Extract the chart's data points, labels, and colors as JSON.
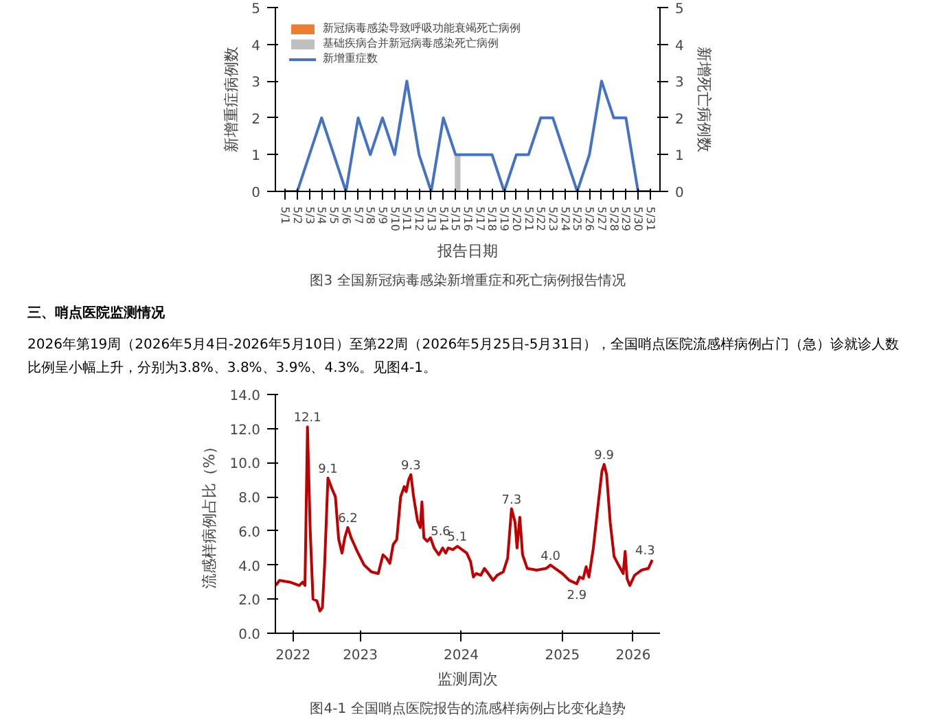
{
  "chart_data": [
    {
      "type": "line",
      "title": "图3 全国新冠病毒感染新增重症和死亡病例报告情况",
      "xlabel": "报告日期",
      "ylabel": "新增重症病例数",
      "y2label": "新增死亡病例数",
      "categories": [
        "5/1",
        "5/2",
        "5/3",
        "5/4",
        "5/5",
        "5/6",
        "5/7",
        "5/8",
        "5/9",
        "5/10",
        "5/11",
        "5/12",
        "5/13",
        "5/14",
        "5/15",
        "5/16",
        "5/17",
        "5/18",
        "5/19",
        "5/20",
        "5/21",
        "5/22",
        "5/23",
        "5/24",
        "5/25",
        "5/26",
        "5/27",
        "5/28",
        "5/29",
        "5/30",
        "5/31"
      ],
      "series": [
        {
          "name": "新冠病毒感染导致呼吸功能衰竭死亡病例",
          "type": "bar",
          "color": "#ed7d31",
          "values": [
            0,
            0,
            0,
            0,
            0,
            0,
            0,
            0,
            0,
            0,
            0,
            0,
            0,
            0,
            0,
            0,
            0,
            0,
            0,
            0,
            0,
            0,
            0,
            0,
            0,
            0,
            0,
            0,
            0,
            0,
            0
          ]
        },
        {
          "name": "基础疾病合并新冠病毒感染死亡病例",
          "type": "bar",
          "color": "#bfbfbf",
          "values": [
            0,
            0,
            0,
            0,
            0,
            0,
            0,
            0,
            0,
            0,
            0,
            0,
            0,
            0,
            1,
            0,
            0,
            0,
            0,
            0,
            0,
            0,
            0,
            0,
            0,
            0,
            0,
            0,
            0,
            0,
            0
          ]
        },
        {
          "name": "新增重症数",
          "type": "line",
          "color": "#4472c4",
          "values": [
            0,
            0,
            1,
            2,
            1,
            0,
            2,
            1,
            2,
            1,
            3,
            1,
            0,
            2,
            1,
            1,
            1,
            1,
            0,
            1,
            1,
            2,
            2,
            1,
            0,
            1,
            3,
            2,
            2,
            0,
            0
          ]
        }
      ],
      "ylim": [
        0,
        5
      ],
      "yticks": [
        0,
        1,
        2,
        3,
        4,
        5
      ],
      "y2lim": [
        0,
        5
      ],
      "y2ticks": [
        0,
        1,
        2,
        3,
        4,
        5
      ],
      "grid": false,
      "legend": "top left",
      "line_style": "solid"
    },
    {
      "type": "other",
      "title": "三、哨点医院监测情况",
      "annotations": [
        "2026年第19周（2026年5月4日-2026年5月10日）至第22周（2026年5月25日-5月31日），全国哨点医院流感样病例占门（急）诊就诊人数比例呈小幅上升，分别为3.8%、3.8%、3.9%、4.3%。见图4-1。"
      ]
    },
    {
      "type": "line",
      "title": "图4-1 全国哨点医院报告的流感样病例占比变化趋势",
      "xlabel": "监测周次",
      "ylabel": "流感样病例占比（%）",
      "x": [
        "2022-08-30",
        "2022-09-13",
        "2022-10-20",
        "2022-11-23",
        "2022-12-06",
        "2022-12-14",
        "2022-12-23",
        "2023-01-02",
        "2023-01-12",
        "2023-01-26",
        "2023-02-06",
        "2023-02-15",
        "2023-02-23",
        "2023-03-07",
        "2023-03-21",
        "2023-04-03",
        "2023-04-15",
        "2023-04-27",
        "2023-05-07",
        "2023-05-18",
        "2023-05-30",
        "2023-06-21",
        "2023-07-16",
        "2023-08-11",
        "2023-09-05",
        "2023-09-22",
        "2023-10-05",
        "2023-10-17",
        "2023-10-29",
        "2023-11-11",
        "2023-11-25",
        "2023-12-08",
        "2023-12-15",
        "2023-12-24",
        "2024-01-01",
        "2024-01-11",
        "2024-01-25",
        "2024-02-04",
        "2024-02-10",
        "2024-02-17",
        "2024-02-29",
        "2024-03-12",
        "2024-03-25",
        "2024-04-11",
        "2024-04-25",
        "2024-05-06",
        "2024-05-15",
        "2024-06-01",
        "2024-06-17",
        "2024-07-04",
        "2024-07-21",
        "2024-08-04",
        "2024-08-14",
        "2024-08-24",
        "2024-09-10",
        "2024-09-23",
        "2024-10-07",
        "2024-10-24",
        "2024-11-08",
        "2024-11-30",
        "2024-12-16",
        "2024-12-30",
        "2025-01-12",
        "2025-01-19",
        "2025-01-29",
        "2025-02-08",
        "2025-02-25",
        "2025-03-31",
        "2025-05-04",
        "2025-05-20",
        "2025-06-06",
        "2025-07-02",
        "2025-07-27",
        "2025-08-23",
        "2025-09-02",
        "2025-09-15",
        "2025-09-26",
        "2025-10-06",
        "2025-10-22",
        "2025-11-08",
        "2025-11-22",
        "2025-11-30",
        "2025-12-09",
        "2025-12-22",
        "2026-01-05",
        "2026-01-21",
        "2026-02-07",
        "2026-02-14",
        "2026-02-21",
        "2026-03-03",
        "2026-03-20",
        "2026-04-14",
        "2026-05-09",
        "2026-05-23"
      ],
      "series": [
        {
          "color": "#c00000",
          "values": [
            2.8,
            3.1,
            3.0,
            2.8,
            3.0,
            2.8,
            12.1,
            6.0,
            2.0,
            1.9,
            1.3,
            1.5,
            4.0,
            9.1,
            8.5,
            8.0,
            5.5,
            4.7,
            5.6,
            6.2,
            5.6,
            4.8,
            4.0,
            3.6,
            3.5,
            4.6,
            4.4,
            4.1,
            5.2,
            5.5,
            8.0,
            8.6,
            8.3,
            9.0,
            9.3,
            8.0,
            6.6,
            6.2,
            7.7,
            5.6,
            5.4,
            5.6,
            5.0,
            4.6,
            5.0,
            4.7,
            5.0,
            4.9,
            5.1,
            4.9,
            4.7,
            4.2,
            3.3,
            3.5,
            3.4,
            3.8,
            3.5,
            3.1,
            3.4,
            3.6,
            4.4,
            7.3,
            6.5,
            5.0,
            6.8,
            4.6,
            3.8,
            3.7,
            3.8,
            4.0,
            3.8,
            3.5,
            3.1,
            2.9,
            3.3,
            3.2,
            3.9,
            3.3,
            5.0,
            7.5,
            9.5,
            9.9,
            9.3,
            6.5,
            4.5,
            4.0,
            3.5,
            4.8,
            3.2,
            2.8,
            3.4,
            3.7,
            3.8,
            4.3
          ]
        }
      ],
      "xlim": [
        "2022-08-29",
        "2026-06-20"
      ],
      "xticks": [
        {
          "value": "2022-11-01",
          "label": "2022"
        },
        {
          "value": "2023-07-02",
          "label": "2023"
        },
        {
          "value": "2024-07-01",
          "label": "2024"
        },
        {
          "value": "2025-07-02",
          "label": "2025"
        },
        {
          "value": "2026-03-15",
          "label": "2026"
        }
      ],
      "ylim": [
        0,
        14
      ],
      "yticks": [
        {
          "value": 0,
          "label": "0.0"
        },
        {
          "value": 2,
          "label": "2.0"
        },
        {
          "value": 4,
          "label": "4.0"
        },
        {
          "value": 6,
          "label": "6.0"
        },
        {
          "value": 8,
          "label": "8.0"
        },
        {
          "value": 10,
          "label": "10.0"
        },
        {
          "value": 12,
          "label": "12.0"
        },
        {
          "value": 14,
          "label": "14.0"
        }
      ],
      "annotations": [
        {
          "text": "12.1",
          "x": "2022-12-23",
          "y": 12.1
        },
        {
          "text": "9.1",
          "x": "2023-03-07",
          "y": 9.1
        },
        {
          "text": "6.2",
          "x": "2023-05-18",
          "y": 6.2
        },
        {
          "text": "9.3",
          "x": "2024-01-01",
          "y": 9.3
        },
        {
          "text": "5.6",
          "x": "2024-02-17",
          "y": 5.6
        },
        {
          "text": "5.1",
          "x": "2024-06-17",
          "y": 5.1
        },
        {
          "text": "7.3",
          "x": "2024-12-30",
          "y": 7.3
        },
        {
          "text": "4.0",
          "x": "2025-05-20",
          "y": 4.0
        },
        {
          "text": "2.9",
          "x": "2025-08-23",
          "y": 2.9
        },
        {
          "text": "9.9",
          "x": "2025-11-30",
          "y": 9.9
        },
        {
          "text": "4.3",
          "x": "2026-05-23",
          "y": 4.3
        }
      ],
      "grid": false,
      "line_style": "solid"
    }
  ]
}
